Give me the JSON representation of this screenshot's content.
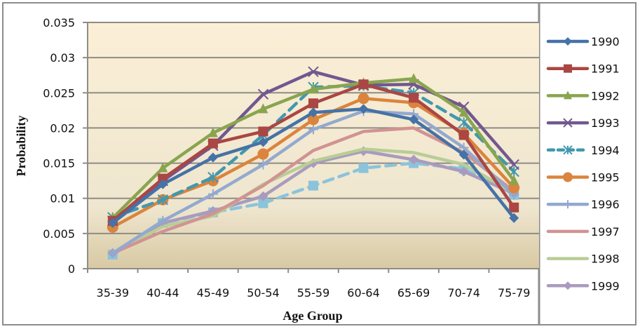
{
  "chart_data": {
    "type": "line",
    "title": "",
    "xlabel": "Age Group",
    "ylabel": "Probability",
    "ylim": [
      0,
      0.035
    ],
    "yticks": [
      "0",
      "0.005",
      "0.01",
      "0.015",
      "0.02",
      "0.025",
      "0.03",
      "0.035"
    ],
    "ytick_values": [
      0,
      0.005,
      0.01,
      0.015,
      0.02,
      0.025,
      0.03,
      0.035
    ],
    "grid": true,
    "legend_position": "right",
    "categories": [
      "35-39",
      "40-44",
      "45-49",
      "50-54",
      "55-59",
      "60-64",
      "65-69",
      "70-74",
      "75-79"
    ],
    "series": [
      {
        "name": "1990",
        "color": "#4572A7",
        "marker": "diamond",
        "dashed": false,
        "in_legend": true,
        "values": [
          0.0065,
          0.012,
          0.0158,
          0.018,
          0.0222,
          0.0227,
          0.0212,
          0.0162,
          0.0072
        ]
      },
      {
        "name": "1991",
        "color": "#AA4643",
        "marker": "square",
        "dashed": false,
        "in_legend": true,
        "values": [
          0.0068,
          0.0128,
          0.0178,
          0.0195,
          0.0235,
          0.0262,
          0.0243,
          0.019,
          0.0087
        ]
      },
      {
        "name": "1992",
        "color": "#89A54E",
        "marker": "triangle",
        "dashed": false,
        "in_legend": true,
        "values": [
          0.0072,
          0.0143,
          0.0193,
          0.0227,
          0.0255,
          0.0264,
          0.027,
          0.0222,
          0.0125
        ]
      },
      {
        "name": "1993",
        "color": "#71588F",
        "marker": "x",
        "dashed": false,
        "in_legend": true,
        "values": [
          0.0068,
          0.0125,
          0.0175,
          0.0248,
          0.028,
          0.0261,
          0.0262,
          0.023,
          0.0148
        ]
      },
      {
        "name": "1994",
        "color": "#4198AF",
        "marker": "star",
        "dashed": true,
        "in_legend": true,
        "values": [
          0.0073,
          0.0098,
          0.013,
          0.019,
          0.0258,
          0.026,
          0.025,
          0.0208,
          0.0138
        ]
      },
      {
        "name": "1995",
        "color": "#DB843D",
        "marker": "circle",
        "dashed": false,
        "in_legend": true,
        "values": [
          0.0059,
          0.0098,
          0.0125,
          0.0163,
          0.0212,
          0.0242,
          0.0236,
          0.0192,
          0.0115
        ]
      },
      {
        "name": "1996",
        "color": "#93A9CF",
        "marker": "plus",
        "dashed": false,
        "in_legend": true,
        "values": [
          0.0022,
          0.0068,
          0.0106,
          0.0148,
          0.0198,
          0.0224,
          0.022,
          0.0172,
          0.0105
        ]
      },
      {
        "name": "1997",
        "color": "#D19392",
        "marker": "none",
        "dashed": false,
        "in_legend": true,
        "values": [
          0.0022,
          0.0053,
          0.0078,
          0.0118,
          0.0168,
          0.0195,
          0.02,
          0.0165,
          0.011
        ]
      },
      {
        "name": "1998",
        "color": "#B9CD96",
        "marker": "none",
        "dashed": false,
        "in_legend": true,
        "values": [
          0.0022,
          0.006,
          0.0075,
          0.012,
          0.0153,
          0.017,
          0.0165,
          0.0148,
          0.0108
        ]
      },
      {
        "name": "1999",
        "color": "#A99BBD",
        "marker": "diamond",
        "dashed": false,
        "in_legend": true,
        "values": [
          0.0022,
          0.0065,
          0.0082,
          0.0103,
          0.015,
          0.0167,
          0.0155,
          0.0138,
          0.0107
        ]
      },
      {
        "name": "",
        "color": "#8BC3DB",
        "marker": "square",
        "dashed": true,
        "in_legend": false,
        "values": [
          0.002,
          0.0065,
          0.008,
          0.0093,
          0.0118,
          0.0143,
          0.015,
          0.0142,
          0.0105
        ]
      }
    ]
  }
}
